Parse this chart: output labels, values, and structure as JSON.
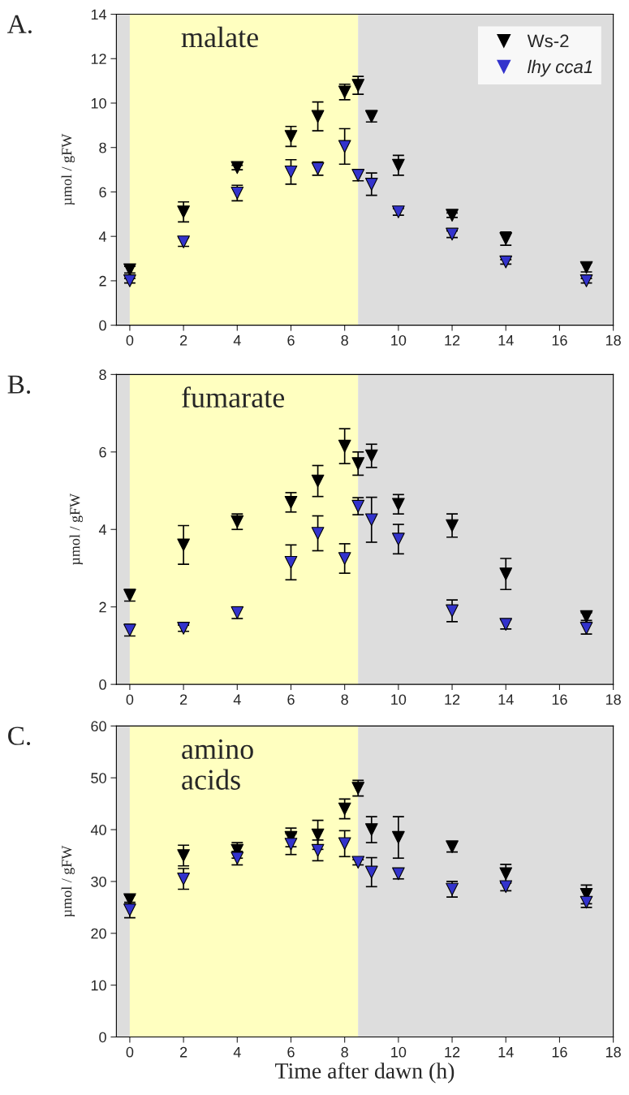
{
  "chart_data": [
    {
      "type": "scatter",
      "title": "A.",
      "ylabel": "µmol / gFW",
      "annotations": [
        "malate"
      ],
      "x": [
        0,
        2,
        4,
        6,
        7,
        8,
        8.5,
        9,
        10,
        12,
        14,
        17
      ],
      "series": [
        {
          "name": "Ws-2",
          "color": "#000000",
          "values": [
            2.5,
            5.1,
            7.1,
            8.5,
            9.4,
            10.5,
            10.8,
            9.4,
            7.2,
            4.95,
            3.9,
            2.6
          ],
          "errors": [
            0.15,
            0.45,
            0.1,
            0.45,
            0.65,
            0.35,
            0.4,
            0.25,
            0.45,
            0.1,
            0.3,
            0.2
          ]
        },
        {
          "name": "lhy cca1",
          "color": "#3333cc",
          "values": [
            2.0,
            3.75,
            5.95,
            6.9,
            7.05,
            8.05,
            6.75,
            6.35,
            5.1,
            4.1,
            2.85,
            2.0
          ],
          "errors": [
            0.1,
            0.2,
            0.35,
            0.55,
            0.3,
            0.8,
            0.25,
            0.5,
            0.15,
            0.15,
            0.1,
            0.1
          ]
        }
      ],
      "bands": [
        {
          "axis": "x",
          "from": -0.5,
          "to": 0,
          "color": "#dddddd"
        },
        {
          "axis": "x",
          "from": 0,
          "to": 8.5,
          "color": "#ffffc0"
        },
        {
          "axis": "x",
          "from": 8.5,
          "to": 18,
          "color": "#dddddd"
        }
      ],
      "xlim": [
        -0.5,
        18
      ],
      "xticks": [
        0,
        2,
        4,
        6,
        8,
        10,
        12,
        14,
        16,
        18
      ],
      "ylim": [
        0,
        14
      ],
      "yticks": [
        0,
        2,
        4,
        6,
        8,
        10,
        12,
        14
      ],
      "marker": "triangle",
      "grid": false,
      "legend": "top right"
    },
    {
      "type": "scatter",
      "title": "B.",
      "ylabel": "µmol / gFW",
      "annotations": [
        "fumarate"
      ],
      "x": [
        0,
        2,
        4,
        6,
        7,
        8,
        8.5,
        9,
        10,
        12,
        14,
        17
      ],
      "series": [
        {
          "color": "#000000",
          "values": [
            2.3,
            3.6,
            4.2,
            4.7,
            5.25,
            6.15,
            5.7,
            5.9,
            4.65,
            4.1,
            2.85,
            1.75
          ],
          "errors": [
            0.15,
            0.5,
            0.2,
            0.25,
            0.4,
            0.45,
            0.3,
            0.3,
            0.25,
            0.3,
            0.4,
            0.1
          ]
        },
        {
          "color": "#3333cc",
          "values": [
            1.4,
            1.45,
            1.85,
            3.15,
            3.9,
            3.25,
            4.6,
            4.25,
            3.75,
            1.9,
            1.55,
            1.45
          ],
          "errors": [
            0.15,
            0.08,
            0.15,
            0.45,
            0.45,
            0.38,
            0.22,
            0.58,
            0.38,
            0.28,
            0.12,
            0.15
          ]
        }
      ],
      "bands": [
        {
          "axis": "x",
          "from": -0.5,
          "to": 0,
          "color": "#dddddd"
        },
        {
          "axis": "x",
          "from": 0,
          "to": 8.5,
          "color": "#ffffc0"
        },
        {
          "axis": "x",
          "from": 8.5,
          "to": 18,
          "color": "#dddddd"
        }
      ],
      "xlim": [
        -0.5,
        18
      ],
      "xticks": [
        0,
        2,
        4,
        6,
        8,
        10,
        12,
        14,
        16,
        18
      ],
      "ylim": [
        0,
        8
      ],
      "yticks": [
        0,
        2,
        4,
        6,
        8
      ],
      "marker": "triangle",
      "grid": false,
      "legend": false
    },
    {
      "type": "scatter",
      "title": "C.",
      "xlabel": "Time after dawn (h)",
      "ylabel": "µmol / gFW",
      "annotations": [
        "amino\nacids"
      ],
      "x": [
        0,
        2,
        4,
        6,
        7,
        8,
        8.5,
        9,
        10,
        12,
        14,
        17
      ],
      "series": [
        {
          "color": "#000000",
          "values": [
            26.5,
            35,
            36,
            38.5,
            39,
            44,
            48,
            40,
            38.5,
            36.7,
            31.5,
            27.5
          ],
          "errors": [
            0.8,
            2,
            1.5,
            1.8,
            2.8,
            1.9,
            1.5,
            2.5,
            4,
            1,
            1.8,
            1.8
          ]
        },
        {
          "color": "#3333cc",
          "values": [
            24.5,
            30.5,
            34.5,
            37.2,
            36,
            37.3,
            33.7,
            31.8,
            31.5,
            28.5,
            29,
            26
          ],
          "errors": [
            1.5,
            2,
            1.3,
            2,
            2,
            2.5,
            0.5,
            2.8,
            1,
            1.5,
            0.8,
            1
          ]
        }
      ],
      "bands": [
        {
          "axis": "x",
          "from": -0.5,
          "to": 0,
          "color": "#dddddd"
        },
        {
          "axis": "x",
          "from": 0,
          "to": 8.5,
          "color": "#ffffc0"
        },
        {
          "axis": "x",
          "from": 8.5,
          "to": 18,
          "color": "#dddddd"
        }
      ],
      "xlim": [
        -0.5,
        18
      ],
      "xticks": [
        0,
        2,
        4,
        6,
        8,
        10,
        12,
        14,
        16,
        18
      ],
      "ylim": [
        0,
        60
      ],
      "yticks": [
        0,
        10,
        20,
        30,
        40,
        50,
        60
      ],
      "marker": "triangle",
      "grid": false,
      "legend": false
    }
  ]
}
